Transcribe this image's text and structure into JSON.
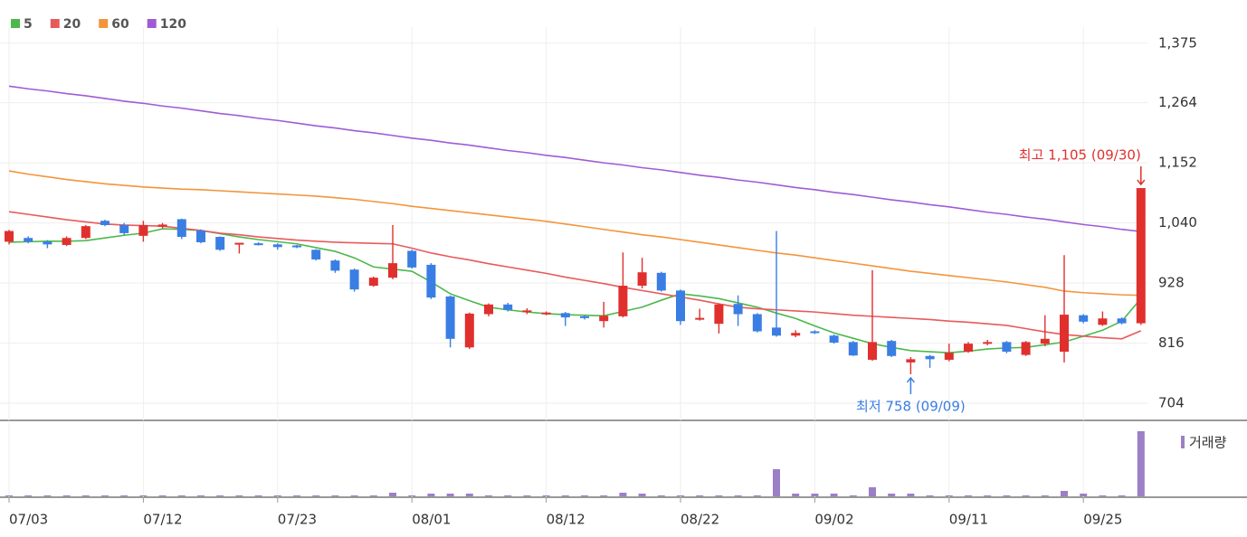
{
  "chart_data": {
    "type": "candlestick",
    "categories": [
      "07/03",
      null,
      null,
      null,
      null,
      null,
      null,
      "07/12",
      null,
      null,
      null,
      null,
      null,
      null,
      "07/23",
      null,
      null,
      null,
      null,
      null,
      null,
      "08/01",
      null,
      null,
      null,
      null,
      null,
      null,
      "08/12",
      null,
      null,
      null,
      null,
      null,
      null,
      "08/22",
      null,
      null,
      null,
      null,
      null,
      null,
      "09/02",
      null,
      null,
      null,
      null,
      null,
      null,
      "09/11",
      null,
      null,
      null,
      null,
      null,
      null,
      "09/25",
      null,
      null,
      null
    ],
    "open": [
      1005,
      1012,
      1005,
      999,
      1012,
      1044,
      1036,
      1016,
      1033,
      1047,
      1026,
      1014,
      1002,
      1002,
      1000,
      998,
      990,
      970,
      953,
      923,
      938,
      988,
      962,
      903,
      808,
      870,
      888,
      874,
      870,
      872,
      866,
      857,
      866,
      923,
      947,
      914,
      860,
      852,
      889,
      870,
      845,
      830,
      838,
      830,
      818,
      785,
      820,
      780,
      792,
      785,
      800,
      815,
      818,
      794,
      815,
      800,
      868,
      850,
      862,
      853
    ],
    "high": [
      1027,
      1015,
      1008,
      1015,
      1036,
      1046,
      1040,
      1044,
      1040,
      1048,
      1028,
      1015,
      1003,
      1004,
      1002,
      999,
      991,
      972,
      955,
      940,
      1036,
      990,
      965,
      905,
      873,
      890,
      891,
      881,
      875,
      874,
      868,
      893,
      985,
      975,
      949,
      916,
      880,
      890,
      905,
      872,
      1025,
      840,
      840,
      832,
      820,
      952,
      822,
      790,
      794,
      815,
      818,
      822,
      820,
      820,
      868,
      980,
      870,
      875,
      864,
      1105
    ],
    "low": [
      1000,
      1002,
      993,
      997,
      1010,
      1034,
      1018,
      1005,
      1030,
      1010,
      1002,
      988,
      983,
      998,
      990,
      993,
      970,
      947,
      912,
      921,
      935,
      955,
      898,
      808,
      805,
      866,
      875,
      870,
      868,
      848,
      860,
      845,
      864,
      918,
      912,
      850,
      858,
      834,
      848,
      836,
      828,
      827,
      833,
      815,
      792,
      783,
      790,
      758,
      770,
      782,
      798,
      812,
      797,
      792,
      810,
      780,
      853,
      848,
      851,
      850
    ],
    "close": [
      1025,
      1005,
      1000,
      1012,
      1034,
      1036,
      1021,
      1036,
      1037,
      1014,
      1004,
      990,
      1003,
      1000,
      995,
      996,
      972,
      951,
      916,
      938,
      965,
      957,
      901,
      824,
      871,
      888,
      878,
      877,
      873,
      864,
      864,
      867,
      923,
      948,
      914,
      857,
      863,
      888,
      870,
      838,
      830,
      835,
      835,
      817,
      793,
      818,
      792,
      786,
      786,
      798,
      815,
      818,
      800,
      818,
      824,
      869,
      856,
      862,
      853,
      1105
    ],
    "up_color": "#e0302d",
    "down_color": "#3a7ee4",
    "series": [
      {
        "name": "5",
        "color": "#4cb84c",
        "values": [
          1004,
          1005,
          1006,
          1006,
          1007,
          1012,
          1017,
          1021,
          1029,
          1028,
          1026,
          1020,
          1014,
          1009,
          1005,
          1001,
          994,
          987,
          975,
          958,
          954,
          950,
          930,
          908,
          895,
          883,
          878,
          874,
          871,
          869,
          868,
          867,
          875,
          883,
          896,
          908,
          904,
          899,
          891,
          883,
          872,
          862,
          848,
          835,
          825,
          815,
          808,
          802,
          800,
          798,
          801,
          805,
          807,
          808,
          813,
          818,
          829,
          840,
          857,
          899
        ]
      },
      {
        "name": "20",
        "color": "#e85a5a",
        "values": [
          1061,
          1056,
          1051,
          1046,
          1042,
          1038,
          1036,
          1035,
          1034,
          1030,
          1026,
          1021,
          1018,
          1014,
          1011,
          1008,
          1006,
          1004,
          1003,
          1002,
          1001,
          993,
          984,
          977,
          971,
          964,
          958,
          952,
          946,
          939,
          933,
          927,
          920,
          914,
          908,
          902,
          896,
          889,
          883,
          880,
          878,
          876,
          874,
          871,
          868,
          866,
          864,
          862,
          860,
          857,
          855,
          852,
          849,
          843,
          837,
          832,
          829,
          826,
          824,
          839
        ]
      },
      {
        "name": "60",
        "color": "#f2953c",
        "values": [
          1137,
          1131,
          1126,
          1121,
          1117,
          1113,
          1110,
          1107,
          1105,
          1103,
          1102,
          1100,
          1098,
          1096,
          1094,
          1092,
          1090,
          1087,
          1084,
          1080,
          1076,
          1071,
          1067,
          1063,
          1059,
          1055,
          1051,
          1047,
          1043,
          1038,
          1033,
          1028,
          1023,
          1018,
          1014,
          1009,
          1004,
          999,
          994,
          989,
          984,
          980,
          975,
          970,
          965,
          960,
          955,
          950,
          946,
          942,
          938,
          934,
          930,
          925,
          920,
          913,
          910,
          908,
          906,
          905
        ]
      },
      {
        "name": "120",
        "color": "#a05bd6",
        "values": [
          1295,
          1290,
          1286,
          1281,
          1277,
          1272,
          1267,
          1263,
          1258,
          1254,
          1249,
          1244,
          1240,
          1235,
          1231,
          1226,
          1221,
          1217,
          1212,
          1208,
          1203,
          1198,
          1194,
          1189,
          1185,
          1180,
          1175,
          1171,
          1166,
          1162,
          1157,
          1152,
          1148,
          1143,
          1139,
          1134,
          1129,
          1125,
          1120,
          1116,
          1111,
          1106,
          1102,
          1097,
          1093,
          1088,
          1083,
          1079,
          1074,
          1070,
          1065,
          1060,
          1056,
          1051,
          1047,
          1042,
          1037,
          1033,
          1028,
          1024
        ]
      }
    ],
    "volume": {
      "name": "거래량",
      "color": "#9b7fc7",
      "values": [
        1,
        1,
        1,
        1,
        1,
        1,
        1,
        1,
        1,
        1,
        1,
        1,
        1,
        1,
        1,
        1,
        1,
        1,
        1,
        1,
        4,
        1,
        3,
        3,
        3,
        1,
        1,
        1,
        1,
        1,
        1,
        1,
        4,
        3,
        1,
        1,
        1,
        1,
        1,
        1,
        30,
        3,
        3,
        3,
        1,
        10,
        3,
        3,
        1,
        1,
        1,
        1,
        1,
        1,
        1,
        6,
        3,
        1,
        1,
        72
      ]
    },
    "ylim": [
      672,
      1405
    ],
    "yticks": [
      704,
      816,
      928,
      {
        "value": 1040,
        "label": "1,040"
      },
      {
        "value": 1152,
        "label": "1,152"
      },
      {
        "value": 1264,
        "label": "1,264"
      },
      {
        "value": 1375,
        "label": "1,375"
      }
    ],
    "grid": true,
    "annotations": [
      {
        "text": "최고 1,105 (09/30)",
        "index": 59,
        "kind": "high",
        "color": "#e0302d"
      },
      {
        "text": "최저 758 (09/09)",
        "index": 47,
        "kind": "low",
        "color": "#3a7ee4"
      }
    ]
  }
}
